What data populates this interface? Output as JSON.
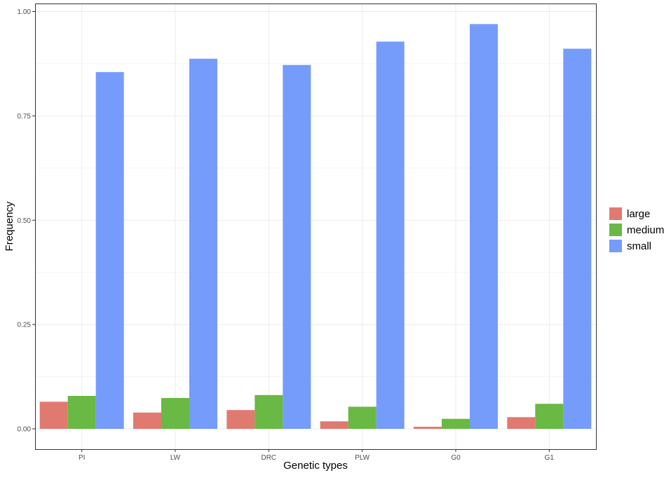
{
  "chart_data": {
    "type": "bar",
    "title": "",
    "xlabel": "Genetic types",
    "ylabel": "Frequency",
    "categories": [
      "PI",
      "LW",
      "DRC",
      "PLW",
      "G0",
      "G1"
    ],
    "series": [
      {
        "name": "large",
        "color": "#E07A70",
        "values": [
          0.065,
          0.039,
          0.045,
          0.018,
          0.005,
          0.028
        ]
      },
      {
        "name": "medium",
        "color": "#69B944",
        "values": [
          0.079,
          0.074,
          0.081,
          0.053,
          0.024,
          0.06
        ]
      },
      {
        "name": "small",
        "color": "#759CFB",
        "values": [
          0.855,
          0.887,
          0.872,
          0.928,
          0.97,
          0.911
        ]
      }
    ],
    "ylim": [
      0,
      1.0
    ],
    "yticks": [
      "0.00",
      "0.25",
      "0.50",
      "0.75",
      "1.00"
    ],
    "grid": true,
    "legend_position": "right"
  }
}
